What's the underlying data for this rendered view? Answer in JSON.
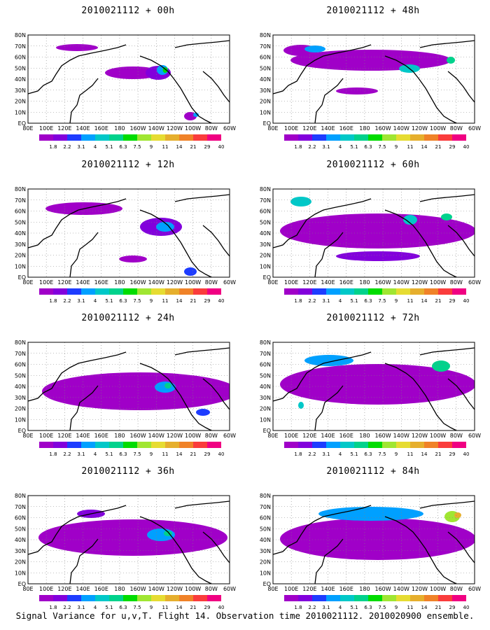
{
  "panels": [
    {
      "title": "2010021112 + 00h"
    },
    {
      "title": "2010021112 + 48h"
    },
    {
      "title": "2010021112 + 12h"
    },
    {
      "title": "2010021112 + 60h"
    },
    {
      "title": "2010021112 + 24h"
    },
    {
      "title": "2010021112 + 72h"
    },
    {
      "title": "2010021112 + 36h"
    },
    {
      "title": "2010021112 + 84h"
    }
  ],
  "map": {
    "lon_labels": [
      "80E",
      "100E",
      "120E",
      "140E",
      "160E",
      "180",
      "160W",
      "140W",
      "120W",
      "100W",
      "80W",
      "60W"
    ],
    "lat_labels": [
      "EQ",
      "10N",
      "20N",
      "30N",
      "40N",
      "50N",
      "60N",
      "70N",
      "80N"
    ]
  },
  "colorbar": {
    "labels": [
      "1.8",
      "2.2",
      "3.1",
      "4",
      "5.1",
      "6.3",
      "7.5",
      "9",
      "11",
      "14",
      "21",
      "29",
      "40"
    ],
    "colors": [
      "#a000c8",
      "#8200dc",
      "#1e3cff",
      "#00a0ff",
      "#00c8c8",
      "#00d28c",
      "#00dc00",
      "#a0e632",
      "#e6dc32",
      "#e6af2d",
      "#f08228",
      "#fa3c3c",
      "#f00082"
    ]
  },
  "caption": "Signal Variance for u,v,T. Flight 14. Observation time 2010021112. 2010020900 ensemble."
}
